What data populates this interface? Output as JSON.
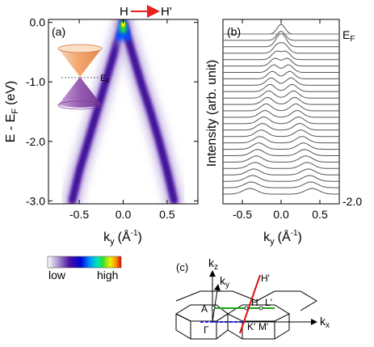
{
  "chart_data": [
    {
      "panel": "(a)",
      "type": "heatmap",
      "description_text": {
        "top_labels": {
          "start": "H",
          "end": "H'"
        },
        "cone_label": "E",
        "cone_label_sub": "F"
      },
      "xlabel": "k",
      "xlabel_sub": "y",
      "xlabel_units_open": "(Å",
      "xlabel_units_exp": "-1",
      "xlabel_units_close": ")",
      "ylabel": "E - E",
      "ylabel_sub": "F",
      "ylabel_units": "(eV)",
      "xlim": [
        -0.85,
        0.85
      ],
      "ylim": [
        -3.05,
        0.05
      ],
      "xticks": [
        -0.5,
        0.0,
        0.5
      ],
      "xtick_labels": [
        "-0.5",
        "0.0",
        "0.5"
      ],
      "yticks": [
        0.0,
        -1.0,
        -2.0,
        -3.0
      ],
      "ytick_labels": [
        "0.0",
        "-1.0",
        "-2.0",
        "-3.0"
      ],
      "branches": [
        {
          "name": "left",
          "points": [
            [
              0.0,
              0.0
            ],
            [
              -0.1,
              -0.5
            ],
            [
              -0.2,
              -1.0
            ],
            [
              -0.3,
              -1.5
            ],
            [
              -0.4,
              -2.0
            ],
            [
              -0.5,
              -2.5
            ],
            [
              -0.58,
              -3.0
            ]
          ]
        },
        {
          "name": "right",
          "points": [
            [
              0.0,
              0.0
            ],
            [
              0.1,
              -0.5
            ],
            [
              0.2,
              -1.0
            ],
            [
              0.31,
              -1.5
            ],
            [
              0.41,
              -2.0
            ],
            [
              0.5,
              -2.5
            ],
            [
              0.58,
              -3.0
            ]
          ]
        }
      ]
    },
    {
      "panel": "(b)",
      "type": "line",
      "xlabel": "k",
      "xlabel_sub": "y",
      "xlabel_units_open": "(Å",
      "xlabel_units_exp": "-1",
      "xlabel_units_close": ")",
      "ylabel": "Intensity (arb. unit)",
      "xlim": [
        -0.75,
        0.75
      ],
      "xticks": [
        -0.5,
        0.0,
        0.5
      ],
      "xtick_labels": [
        "-0.5",
        "0.0",
        "0.5"
      ],
      "top_energy_label": "E",
      "top_energy_label_sub": "F",
      "bottom_energy_label": "-2.0",
      "curve_count": 26,
      "energy_range": [
        0.0,
        -2.0
      ],
      "peak_dispersion": "peak position k = ±0.2·|E| (two branches from k = 0 at E = 0)"
    },
    {
      "panel": "(colorbar)",
      "type": "colorbar",
      "labels": {
        "low": "low",
        "high": "high"
      },
      "colors": [
        "#ffffff",
        "#b8a6d8",
        "#4b0fa0",
        "#0000d8",
        "#0090ff",
        "#00e0c0",
        "#30e030",
        "#f0f000",
        "#ff9000",
        "#e00000"
      ]
    },
    {
      "panel": "(c)",
      "type": "diagram",
      "axis_labels": {
        "kz": "k",
        "kz_sub": "z",
        "ky": "k",
        "ky_sub": "y",
        "kx": "k",
        "kx_sub": "x"
      },
      "points": [
        "A",
        "H",
        "L'",
        "Γ",
        "K'",
        "M'",
        "H'"
      ]
    }
  ],
  "colors": {
    "arrow": "#e8201f",
    "green_line": "#1aa51a",
    "blue_line": "#2020e0",
    "red_line": "#e01010",
    "axis": "#000000"
  }
}
